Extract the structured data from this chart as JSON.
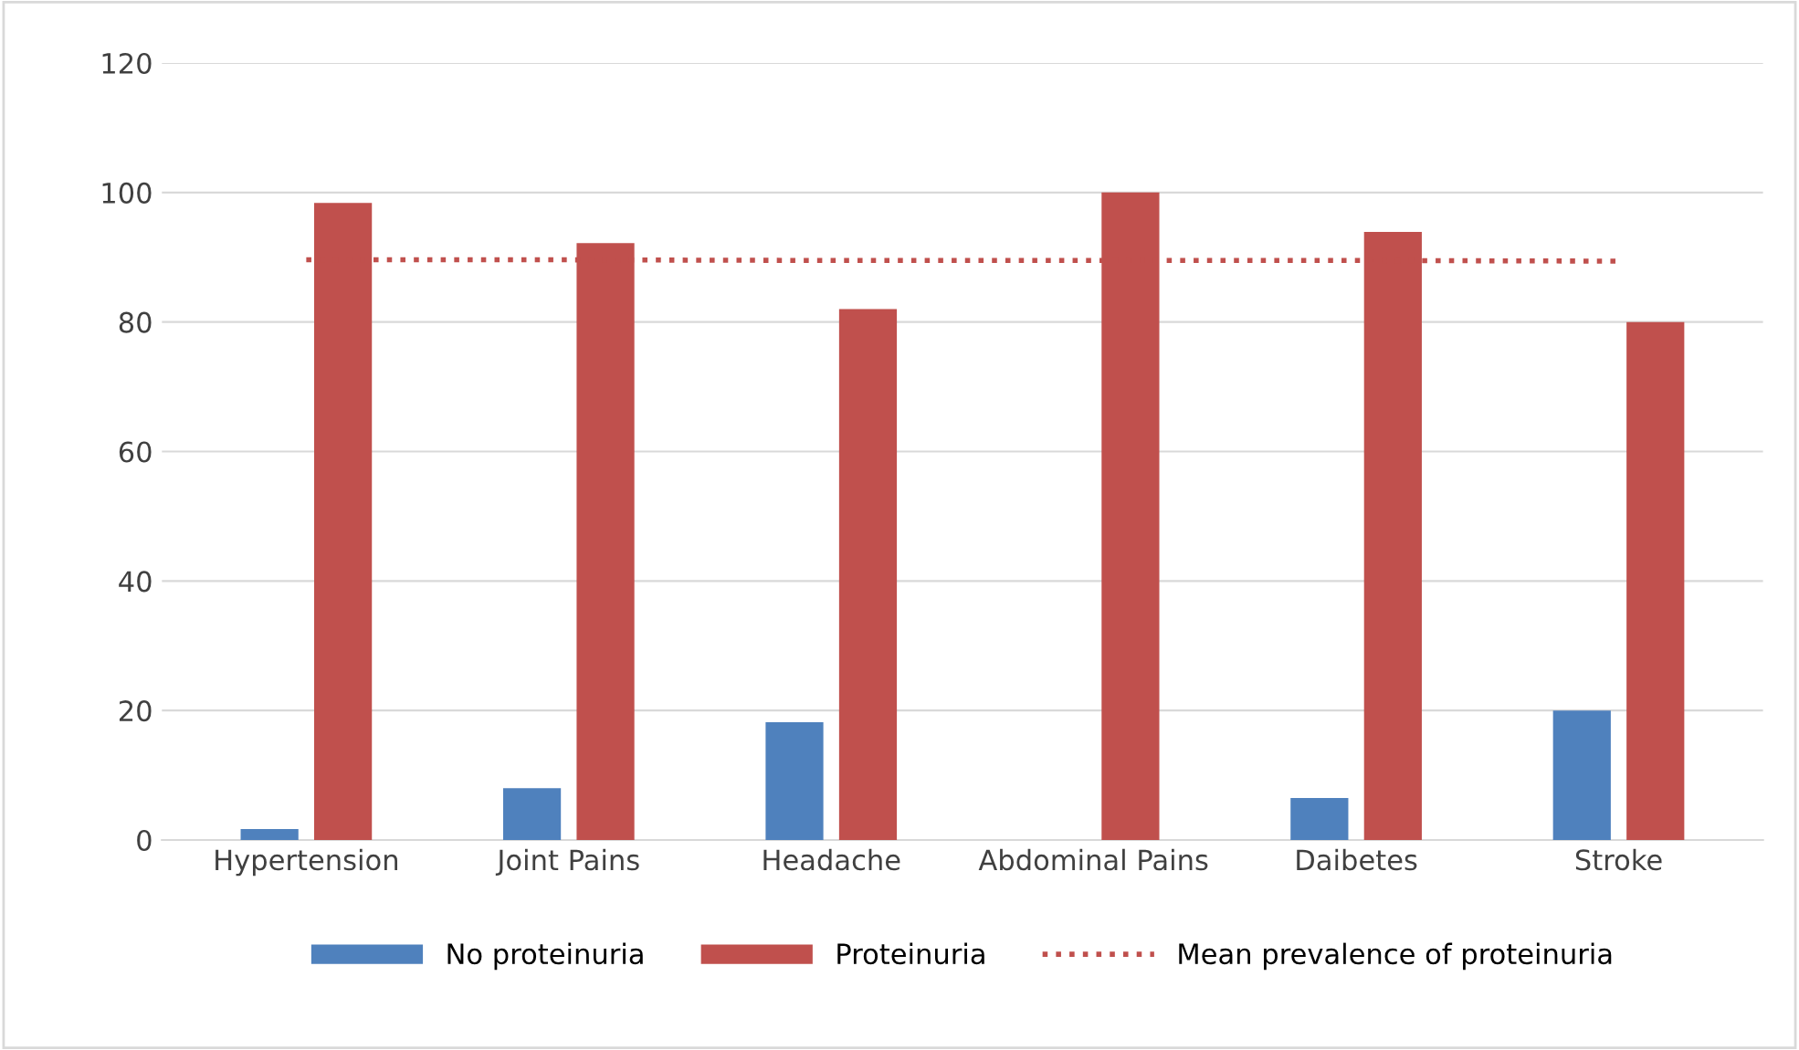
{
  "chart_data": {
    "type": "bar",
    "categories": [
      "Hypertension",
      "Joint Pains",
      "Headache",
      "Abdominal Pains",
      "Daibetes",
      "Stroke"
    ],
    "series": [
      {
        "name": "No proteinuria",
        "color": "#4f81bd",
        "values": [
          1.7,
          8,
          18.2,
          0,
          6.5,
          20
        ]
      },
      {
        "name": "Proteinuria",
        "color": "#c0504d",
        "values": [
          98.4,
          92.2,
          82,
          100,
          93.9,
          80
        ]
      },
      {
        "name": "Mean prevalence of proteinuria",
        "type": "line",
        "color": "#c0504d",
        "line_style": "dotted",
        "values": [
          89.6,
          89.6,
          89.5,
          89.5,
          89.5,
          89.4
        ]
      }
    ],
    "ylim": [
      0,
      120
    ],
    "yticks": [
      0,
      20,
      40,
      60,
      80,
      100,
      120
    ],
    "grid": "y",
    "legend": "bottom",
    "marker": "none"
  }
}
